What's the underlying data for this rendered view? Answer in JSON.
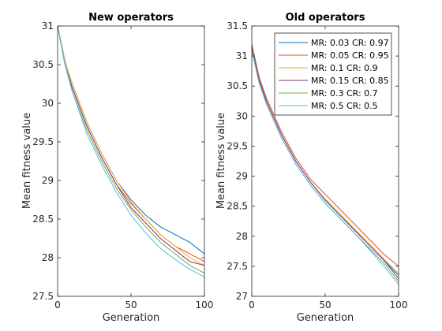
{
  "chart_data": [
    {
      "type": "line",
      "title": "New operators",
      "xlabel": "Generation",
      "ylabel": "Mean fitness value",
      "xlim": [
        0,
        100
      ],
      "ylim": [
        27.5,
        31
      ],
      "xticks": [
        "0",
        "50",
        "100"
      ],
      "yticks": [
        "27.5",
        "28",
        "28.5",
        "29",
        "29.5",
        "30",
        "30.5",
        "31"
      ],
      "grid": false,
      "legend": null,
      "x": [
        0,
        5,
        10,
        20,
        30,
        40,
        50,
        60,
        70,
        80,
        90,
        100
      ],
      "series": [
        {
          "color": "#0072BD",
          "values": [
            31.0,
            30.55,
            30.25,
            29.75,
            29.35,
            29.0,
            28.75,
            28.55,
            28.4,
            28.3,
            28.2,
            28.05
          ]
        },
        {
          "color": "#D95319",
          "values": [
            31.0,
            30.5,
            30.2,
            29.7,
            29.3,
            28.95,
            28.7,
            28.5,
            28.3,
            28.15,
            28.05,
            27.95
          ]
        },
        {
          "color": "#EDB120",
          "values": [
            31.0,
            30.55,
            30.25,
            29.75,
            29.35,
            29.0,
            28.72,
            28.5,
            28.3,
            28.15,
            28.0,
            27.9
          ]
        },
        {
          "color": "#7E2F8E",
          "values": [
            31.0,
            30.5,
            30.2,
            29.7,
            29.3,
            28.95,
            28.65,
            28.45,
            28.25,
            28.1,
            27.95,
            27.9
          ]
        },
        {
          "color": "#77AC30",
          "values": [
            31.0,
            30.5,
            30.15,
            29.65,
            29.25,
            28.9,
            28.62,
            28.4,
            28.2,
            28.05,
            27.9,
            27.8
          ]
        },
        {
          "color": "#4DBEEE",
          "values": [
            31.0,
            30.5,
            30.15,
            29.6,
            29.2,
            28.85,
            28.55,
            28.32,
            28.12,
            27.98,
            27.85,
            27.75
          ]
        }
      ]
    },
    {
      "type": "line",
      "title": "Old operators",
      "xlabel": "Generation",
      "ylabel": "Mean fitness value",
      "xlim": [
        0,
        100
      ],
      "ylim": [
        27,
        31.5
      ],
      "xticks": [
        "0",
        "50",
        "100"
      ],
      "yticks": [
        "27",
        "27.5",
        "28",
        "28.5",
        "29",
        "29.5",
        "30",
        "30.5",
        "31",
        "31.5"
      ],
      "grid": false,
      "legend": "top-right",
      "x": [
        0,
        5,
        10,
        20,
        30,
        40,
        50,
        60,
        70,
        80,
        90,
        100
      ],
      "series": [
        {
          "name": "MR: 0.03 CR: 0.97",
          "color": "#0072BD",
          "values": [
            31.15,
            30.6,
            30.25,
            29.7,
            29.25,
            28.9,
            28.6,
            28.35,
            28.1,
            27.85,
            27.6,
            27.35
          ]
        },
        {
          "name": "MR: 0.05 CR: 0.95",
          "color": "#D95319",
          "values": [
            31.2,
            30.65,
            30.3,
            29.75,
            29.3,
            28.95,
            28.7,
            28.45,
            28.2,
            27.95,
            27.7,
            27.5
          ]
        },
        {
          "name": "MR: 0.1 CR: 0.9",
          "color": "#EDB120",
          "values": [
            31.15,
            30.6,
            30.25,
            29.7,
            29.25,
            28.9,
            28.62,
            28.38,
            28.12,
            27.88,
            27.62,
            27.38
          ]
        },
        {
          "name": "MR: 0.15 CR: 0.85",
          "color": "#7E2F8E",
          "values": [
            31.15,
            30.6,
            30.25,
            29.7,
            29.25,
            28.9,
            28.6,
            28.35,
            28.1,
            27.85,
            27.6,
            27.3
          ]
        },
        {
          "name": "MR: 0.3 CR: 0.7",
          "color": "#77AC30",
          "values": [
            31.1,
            30.55,
            30.2,
            29.65,
            29.2,
            28.85,
            28.55,
            28.3,
            28.05,
            27.8,
            27.55,
            27.25
          ]
        },
        {
          "name": "MR: 0.5 CR: 0.5",
          "color": "#4DBEEE",
          "values": [
            31.1,
            30.55,
            30.2,
            29.65,
            29.2,
            28.85,
            28.55,
            28.3,
            28.05,
            27.78,
            27.5,
            27.2
          ]
        }
      ]
    }
  ]
}
